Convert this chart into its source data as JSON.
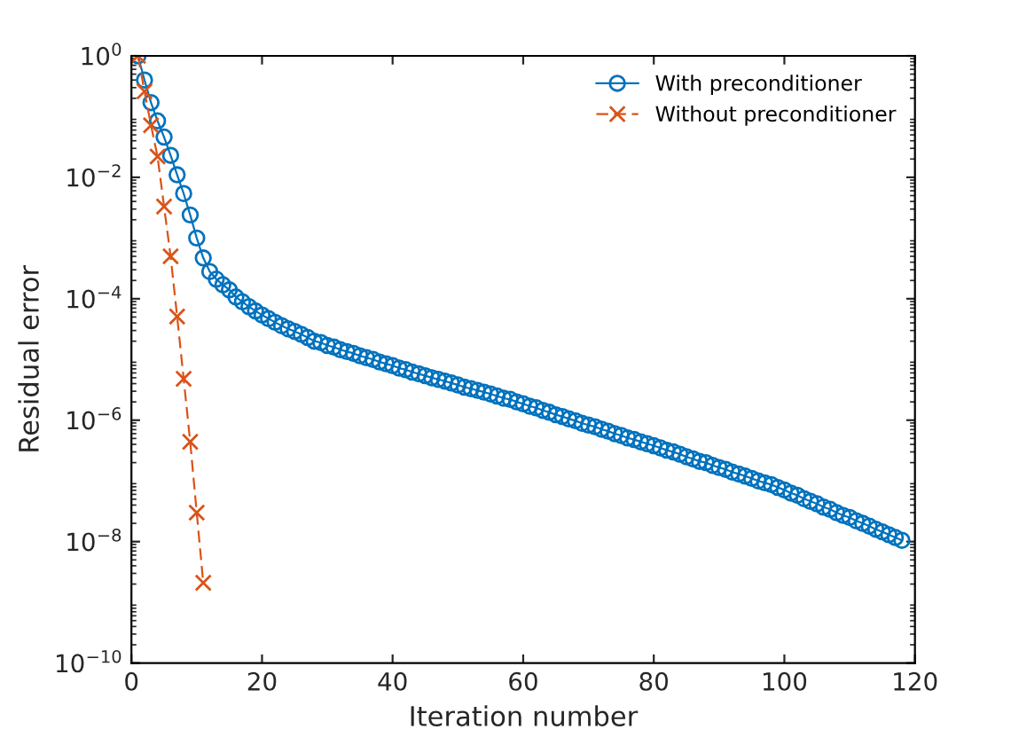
{
  "chart_data": {
    "type": "line",
    "xlabel": "Iteration number",
    "ylabel": "Residual error",
    "log": "y",
    "grid": false,
    "legend": "top right",
    "xlim": [
      0,
      120
    ],
    "xticks": [
      0,
      20,
      40,
      60,
      80,
      100,
      120
    ],
    "ylim": [
      1e-10,
      1
    ],
    "yticks": [
      {
        "value": 1,
        "label": "10$^{0}$"
      },
      {
        "value": 0.01,
        "label": "10$^{−2}$"
      },
      {
        "value": 0.0001,
        "label": "10$^{−4}$"
      },
      {
        "value": 1e-06,
        "label": "10$^{−6}$"
      },
      {
        "value": 1e-08,
        "label": "10$^{−8}$"
      },
      {
        "value": 1e-10,
        "label": "10$^{−10}$"
      }
    ],
    "series": [
      {
        "name": "With preconditioner",
        "color": "#0072bd",
        "marker": "circle",
        "line_style": "solid",
        "x": [
          1,
          2,
          3,
          4,
          5,
          6,
          7,
          8,
          9,
          10,
          11,
          12,
          13,
          14,
          15,
          16,
          17,
          18,
          19,
          20,
          21,
          22,
          23,
          24,
          25,
          26,
          27,
          28,
          29,
          30,
          31,
          32,
          33,
          34,
          35,
          36,
          37,
          38,
          39,
          40,
          41,
          42,
          43,
          44,
          45,
          46,
          47,
          48,
          49,
          50,
          51,
          52,
          53,
          54,
          55,
          56,
          57,
          58,
          59,
          60,
          61,
          62,
          63,
          64,
          65,
          66,
          67,
          68,
          69,
          70,
          71,
          72,
          73,
          74,
          75,
          76,
          77,
          78,
          79,
          80,
          81,
          82,
          83,
          84,
          85,
          86,
          87,
          88,
          89,
          90,
          91,
          92,
          93,
          94,
          95,
          96,
          97,
          98,
          99,
          100,
          101,
          102,
          103,
          104,
          105,
          106,
          107,
          108,
          109,
          110,
          111,
          112,
          113,
          114,
          115,
          116,
          117,
          118
        ],
        "values": [
          1,
          0.4,
          0.17,
          0.085,
          0.046,
          0.023,
          0.011,
          0.0054,
          0.0024,
          0.001,
          0.00047,
          0.00028,
          0.00021,
          0.00017,
          0.00014,
          0.000107,
          8.9e-05,
          7.4e-05,
          6.3e-05,
          5.4e-05,
          4.7e-05,
          4.1e-05,
          3.6e-05,
          3.2e-05,
          2.9e-05,
          2.6e-05,
          2.3e-05,
          2e-05,
          1.9e-05,
          1.7e-05,
          1.6e-05,
          1.45e-05,
          1.35e-05,
          1.26e-05,
          1.15e-05,
          1.07e-05,
          1e-05,
          9.1e-06,
          8.5e-06,
          7.9e-06,
          7.2e-06,
          6.8e-06,
          6.2e-06,
          5.8e-06,
          5.4e-06,
          5e-06,
          4.7e-06,
          4.4e-06,
          4.1e-06,
          3.8e-06,
          3.5e-06,
          3.3e-06,
          3.1e-06,
          2.9e-06,
          2.7e-06,
          2.5e-06,
          2.3e-06,
          2.2e-06,
          2e-06,
          1.86e-06,
          1.7e-06,
          1.6e-06,
          1.45e-06,
          1.35e-06,
          1.23e-06,
          1.15e-06,
          1.05e-06,
          9.8e-07,
          8.9e-07,
          8.3e-07,
          7.8e-07,
          7.1e-07,
          6.6e-07,
          6e-07,
          5.6e-07,
          5.1e-07,
          4.8e-07,
          4.4e-07,
          4.1e-07,
          3.8e-07,
          3.5e-07,
          3.2e-07,
          3e-07,
          2.75e-07,
          2.5e-07,
          2.3e-07,
          2.1e-07,
          2e-07,
          1.8e-07,
          1.66e-07,
          1.55e-07,
          1.4e-07,
          1.3e-07,
          1.2e-07,
          1.1e-07,
          1e-07,
          9.3e-08,
          8.7e-08,
          7.8e-08,
          7.1e-08,
          6.3e-08,
          5.8e-08,
          5.1e-08,
          4.6e-08,
          4.2e-08,
          3.7e-08,
          3.4e-08,
          3e-08,
          2.7e-08,
          2.5e-08,
          2.2e-08,
          2e-08,
          1.8e-08,
          1.6e-08,
          1.45e-08,
          1.3e-08,
          1.17e-08,
          1.05e-08
        ]
      },
      {
        "name": "Without preconditioner",
        "color": "#d95319",
        "marker": "cross",
        "line_style": "dashed",
        "x": [
          1,
          2,
          3,
          4,
          5,
          6,
          7,
          8,
          9,
          10,
          11
        ],
        "values": [
          1,
          0.26,
          0.072,
          0.022,
          0.0033,
          0.0005,
          5.1e-05,
          4.8e-06,
          4.4e-07,
          3e-08,
          2.1e-09
        ]
      }
    ]
  }
}
